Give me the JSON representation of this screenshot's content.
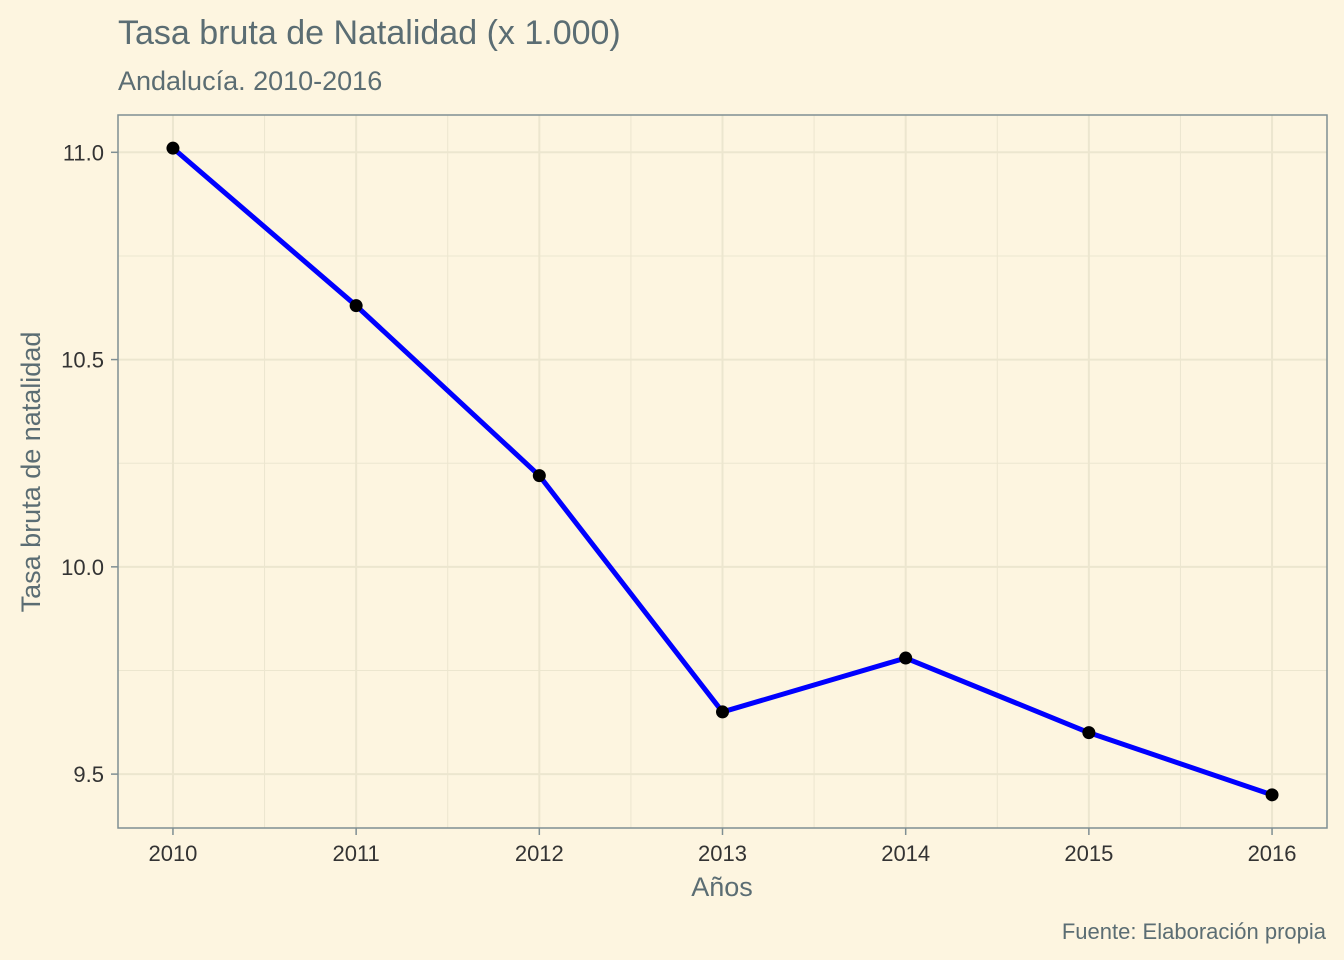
{
  "chart_data": {
    "type": "line",
    "title": "Tasa bruta de Natalidad (x 1.000)",
    "subtitle": "Andalucía. 2010-2016",
    "xlabel": "Años",
    "ylabel": "Tasa bruta de natalidad",
    "caption": "Fuente: Elaboración propia",
    "x": [
      2010,
      2011,
      2012,
      2013,
      2014,
      2015,
      2016
    ],
    "x_tick_labels": [
      "2010",
      "2011",
      "2012",
      "2013",
      "2014",
      "2015",
      "2016"
    ],
    "y_ticks": [
      9.5,
      10.0,
      10.5,
      11.0
    ],
    "y_tick_labels": [
      "9.5",
      "10.0",
      "10.5",
      "11.0"
    ],
    "series": [
      {
        "values": [
          11.01,
          10.63,
          10.22,
          9.65,
          9.78,
          9.6,
          9.45
        ]
      }
    ],
    "xlim": [
      2009.7,
      2016.3
    ],
    "ylim": [
      9.37,
      11.09
    ],
    "grid": true,
    "colors": {
      "background": "#fdf5e0",
      "gridline": "#ece6cf",
      "line": "#0000ff",
      "point": "#000000",
      "axis": "#7f8f93",
      "text": "#5b6d73"
    }
  }
}
